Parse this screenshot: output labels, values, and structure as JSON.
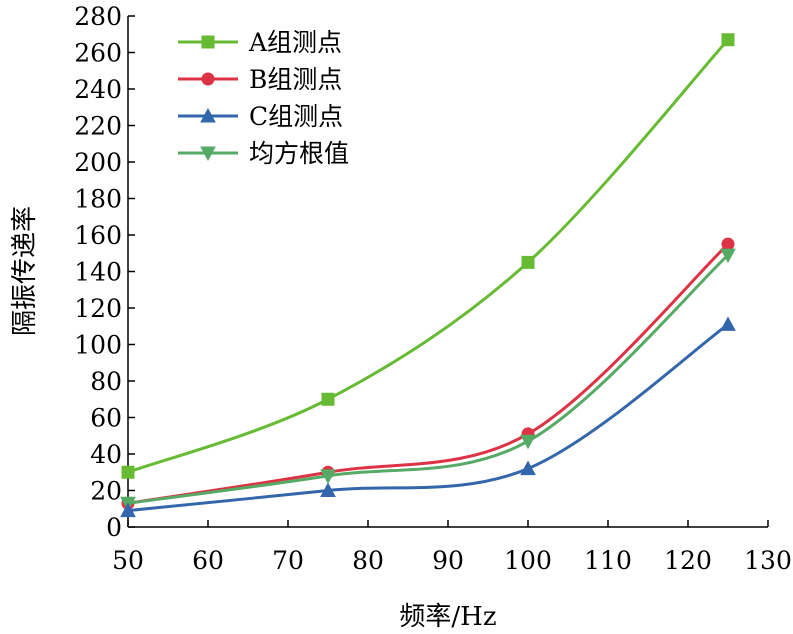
{
  "chart_data": {
    "type": "line",
    "title": "",
    "xlabel": "频率/Hz",
    "ylabel": "隔振传递率",
    "xlim": [
      50,
      130
    ],
    "ylim": [
      0,
      280
    ],
    "xticks": [
      "50",
      "60",
      "70",
      "80",
      "90",
      "100",
      "110",
      "120",
      "130"
    ],
    "yticks": [
      "0",
      "20",
      "40",
      "60",
      "80",
      "100",
      "120",
      "140",
      "160",
      "180",
      "200",
      "220",
      "240",
      "260",
      "280"
    ],
    "x": [
      50,
      75,
      100,
      125
    ],
    "grid": false,
    "legend_position": "top-left",
    "series": [
      {
        "name": "A组测点",
        "values": [
          30,
          70,
          145,
          267
        ],
        "color": "#66bb33",
        "marker": "square"
      },
      {
        "name": "B组测点",
        "values": [
          13,
          30,
          51,
          155
        ],
        "color": "#dd3344",
        "marker": "circle"
      },
      {
        "name": "C组测点",
        "values": [
          9,
          20,
          32,
          111
        ],
        "color": "#3366aa",
        "marker": "triangle-up"
      },
      {
        "name": "均方根值",
        "values": [
          13,
          28,
          47,
          149
        ],
        "color": "#55aa66",
        "marker": "triangle-down"
      }
    ]
  }
}
